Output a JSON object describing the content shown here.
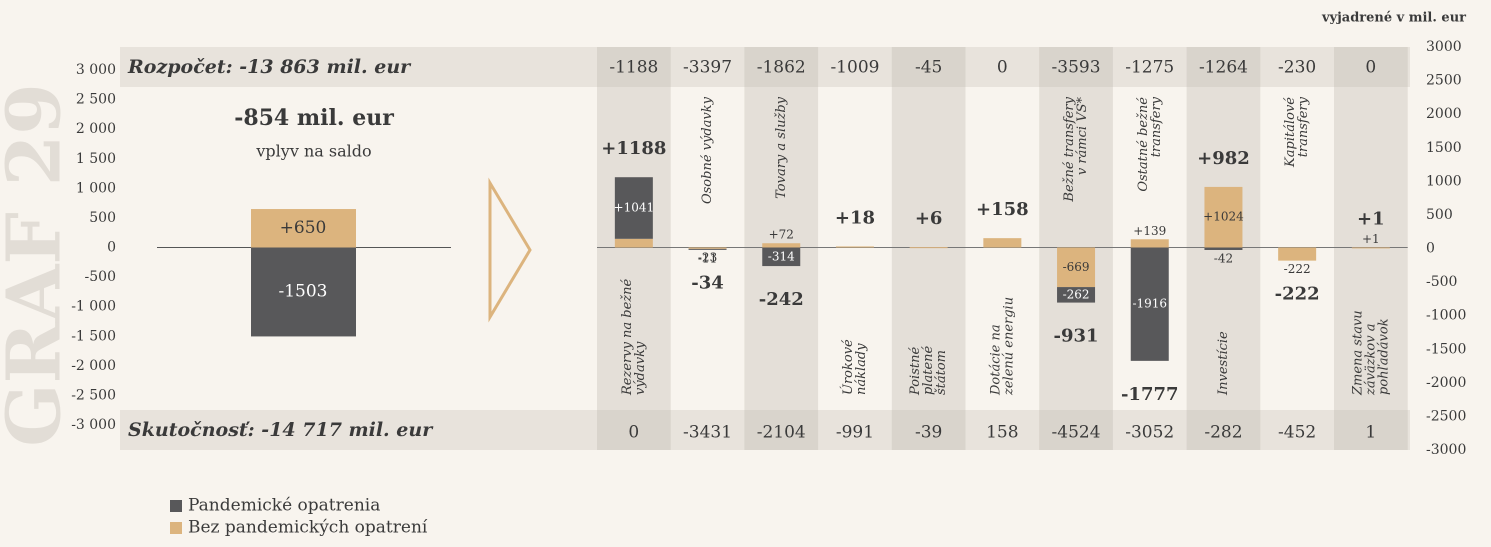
{
  "chart_data": {
    "type": "bar",
    "title": "GRAF 29",
    "unit_note": "vyjadrené v mil. eur",
    "budget_label": "Rozpočet: -13 863 mil. eur",
    "actual_label": "Skutočnosť: -14 717 mil. eur",
    "summary": {
      "impact": "-854 mil. eur",
      "impact_note": "vplyv na saldo",
      "values": [
        650,
        -1503
      ],
      "value_labels": [
        "+650",
        "-1503"
      ]
    },
    "categories": [
      [
        "Rezervy na bežné",
        "výdavky"
      ],
      [
        "Osobné výdavky"
      ],
      [
        "Tovary a služby"
      ],
      [
        "Úrokové",
        "náklady"
      ],
      [
        "Poistné",
        "platené",
        "štátom"
      ],
      [
        "Dotácie na",
        "zelenú energiu"
      ],
      [
        "Bežné transfery",
        "v rámci VS*"
      ],
      [
        "Ostatné bežné",
        "transfery"
      ],
      [
        "Investície"
      ],
      [
        "Kapitálové",
        "transfery"
      ],
      [
        "Zmena stavu",
        "záväzkov a",
        "pohľadávok"
      ]
    ],
    "budget": [
      -1188,
      -3397,
      -1862,
      -1009,
      -45,
      0,
      -3593,
      -1275,
      -1264,
      -230,
      0
    ],
    "actual": [
      0,
      -3431,
      -2104,
      -991,
      -39,
      158,
      -4524,
      -3052,
      -282,
      -452,
      1
    ],
    "totals": [
      1188,
      -34,
      -242,
      18,
      6,
      158,
      -931,
      -1777,
      982,
      -222,
      1
    ],
    "total_labels": [
      "+1188",
      "-34",
      "-242",
      "+18",
      "+6",
      "+158",
      "-931",
      "-1777",
      "+982",
      "-222",
      "+1"
    ],
    "series": [
      {
        "name": "Bez pandemických opatrení",
        "color": "#dcb47e",
        "values": [
          147,
          -23,
          72,
          18,
          6,
          158,
          -669,
          139,
          1024,
          -222,
          1
        ],
        "value_labels": [
          "+147",
          "-23",
          "+72",
          null,
          null,
          null,
          "-669",
          "+139",
          "+1024",
          "-222",
          "+1"
        ]
      },
      {
        "name": "Pandemické opatrenia",
        "color": "#58585a",
        "values": [
          1041,
          -11,
          -314,
          null,
          null,
          null,
          -262,
          -1916,
          -42,
          null,
          null
        ],
        "value_labels": [
          "+1041",
          "-11",
          "-314",
          null,
          null,
          null,
          "-262",
          "-1916",
          "-42",
          null,
          null
        ]
      }
    ],
    "ylim": [
      -3000,
      3000
    ],
    "yticks": [
      {
        "value": 3000,
        "label": "3 000"
      },
      {
        "value": 2500,
        "label": "2 500"
      },
      {
        "value": 2000,
        "label": "2 000"
      },
      {
        "value": 1500,
        "label": "1 500"
      },
      {
        "value": 1000,
        "label": "1 000"
      },
      500,
      0,
      -500,
      {
        "value": -1000,
        "label": "-1 000"
      },
      {
        "value": -1500,
        "label": "-1 500"
      },
      {
        "value": -2000,
        "label": "-2 000"
      },
      {
        "value": -2500,
        "label": "-2 500"
      },
      {
        "value": -3000,
        "label": "-3 000"
      }
    ],
    "y2lim": [
      -3000,
      3000
    ],
    "y2ticks": [
      3000,
      2500,
      2000,
      1500,
      1000,
      500,
      0,
      -500,
      -1000,
      -1500,
      -2000,
      -2500,
      -3000
    ]
  }
}
